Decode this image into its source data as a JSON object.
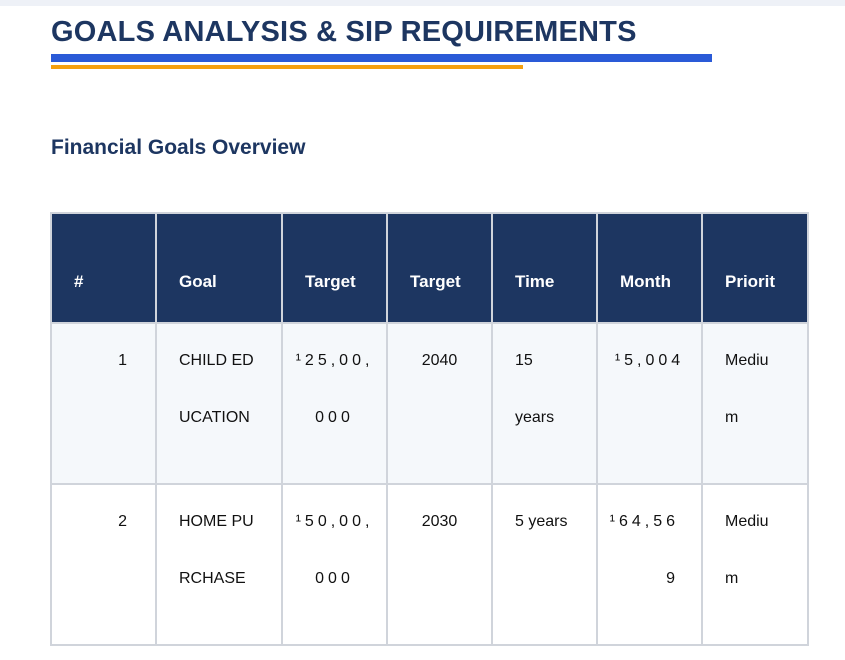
{
  "page": {
    "title": "GOALS ANALYSIS & SIP REQUIREMENTS",
    "section_title": "Financial Goals Overview"
  },
  "colors": {
    "navy": "#1d3661",
    "accent_blue": "#2a5ad7",
    "accent_orange": "#f5a00f",
    "row_alt": "#f5f8fb"
  },
  "table": {
    "headers": [
      "#",
      "Goal\nName",
      "Target\nAmou",
      "Target\nYear",
      "Time\nHorizo",
      "Month\nly SIP",
      "Priorit\ny"
    ],
    "rows": [
      {
        "num": "1",
        "goal": "CHILD ED\nUCATION",
        "amount": "¹25,00,\n000",
        "year": "2040",
        "horizon": "15\nyears",
        "sip": "¹5,004",
        "priority": "Mediu\nm"
      },
      {
        "num": "2",
        "goal": "HOME PU\nRCHASE",
        "amount": "¹50,00,\n000",
        "year": "2030",
        "horizon": "5 years",
        "sip": "¹64,56\n9",
        "priority": "Mediu\nm"
      }
    ]
  }
}
